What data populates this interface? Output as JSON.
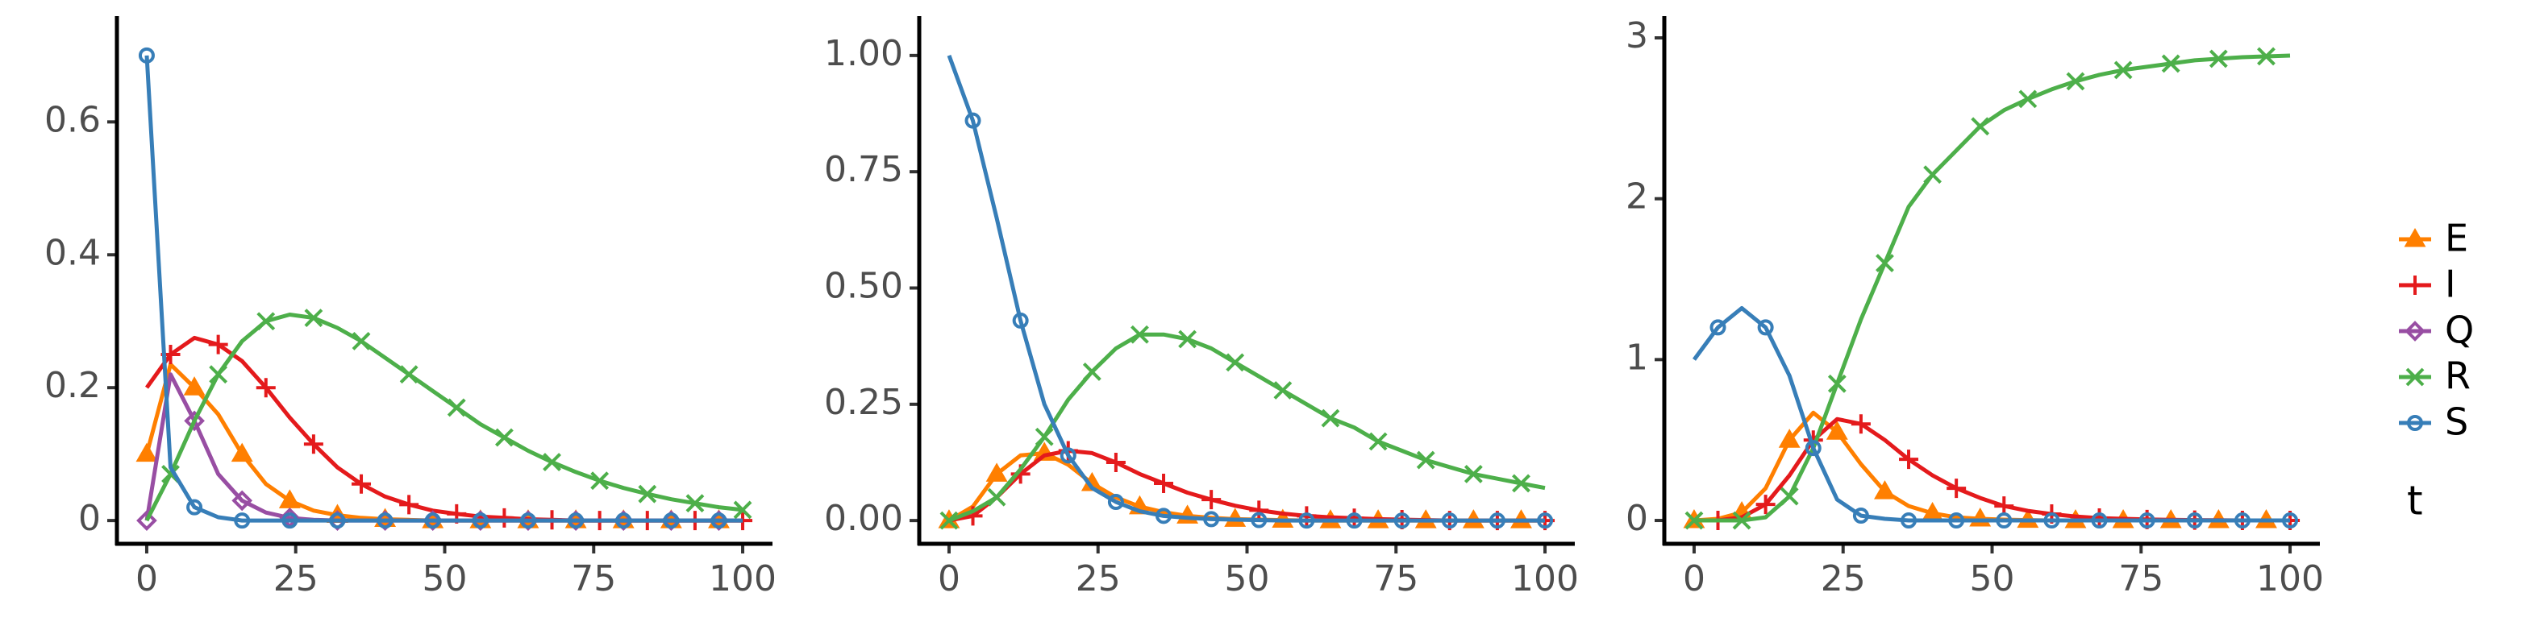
{
  "chart_data": [
    {
      "type": "line",
      "legend_title": "t",
      "x": [
        0,
        4,
        8,
        12,
        16,
        20,
        24,
        28,
        32,
        36,
        40,
        44,
        48,
        52,
        56,
        60,
        64,
        68,
        72,
        76,
        80,
        84,
        88,
        92,
        96,
        100
      ],
      "xlim": [
        -5,
        105
      ],
      "xticks": [
        0,
        25,
        50,
        75,
        100
      ],
      "ylim": [
        -0.035,
        0.735
      ],
      "yticks": [
        0.0,
        0.2,
        0.4,
        0.6
      ],
      "series": [
        {
          "name": "E",
          "color": "#ff7f00",
          "marker": "triangle",
          "values": [
            0.1,
            0.235,
            0.2,
            0.16,
            0.1,
            0.055,
            0.03,
            0.015,
            0.008,
            0.004,
            0.002,
            0.001,
            0,
            0,
            0,
            0,
            0,
            0,
            0,
            0,
            0,
            0,
            0,
            0,
            0,
            0
          ]
        },
        {
          "name": "I",
          "color": "#e41a1c",
          "marker": "plus",
          "values": [
            0.2,
            0.25,
            0.275,
            0.265,
            0.24,
            0.2,
            0.155,
            0.115,
            0.08,
            0.055,
            0.036,
            0.024,
            0.015,
            0.01,
            0.006,
            0.004,
            0.002,
            0.001,
            0,
            0,
            0,
            0,
            0,
            0,
            0,
            0
          ]
        },
        {
          "name": "Q",
          "color": "#984ea3",
          "marker": "diamond",
          "values": [
            0,
            0.22,
            0.15,
            0.07,
            0.03,
            0.012,
            0.004,
            0.001,
            0,
            0,
            0,
            0,
            0,
            0,
            0,
            0,
            0,
            0,
            0,
            0,
            0,
            0,
            0,
            0,
            0,
            0
          ]
        },
        {
          "name": "R",
          "color": "#4daf4a",
          "marker": "cross",
          "values": [
            0,
            0.07,
            0.15,
            0.22,
            0.27,
            0.3,
            0.31,
            0.305,
            0.29,
            0.27,
            0.245,
            0.22,
            0.195,
            0.17,
            0.145,
            0.125,
            0.105,
            0.088,
            0.073,
            0.06,
            0.049,
            0.04,
            0.032,
            0.026,
            0.02,
            0.016
          ]
        },
        {
          "name": "S",
          "color": "#377eb8",
          "marker": "circle",
          "values": [
            0.7,
            0.08,
            0.02,
            0.005,
            0,
            0,
            0,
            0,
            0,
            0,
            0,
            0,
            0,
            0,
            0,
            0,
            0,
            0,
            0,
            0,
            0,
            0,
            0,
            0,
            0,
            0
          ]
        }
      ]
    },
    {
      "type": "line",
      "x": [
        0,
        4,
        8,
        12,
        16,
        20,
        24,
        28,
        32,
        36,
        40,
        44,
        48,
        52,
        56,
        60,
        64,
        68,
        72,
        76,
        80,
        84,
        88,
        92,
        96,
        100
      ],
      "xlim": [
        -5,
        105
      ],
      "xticks": [
        0,
        25,
        50,
        75,
        100
      ],
      "ylim": [
        -0.05,
        1.05
      ],
      "yticks": [
        {
          "value": 0,
          "label": "0.00"
        },
        {
          "value": 0.25,
          "label": "0.25"
        },
        {
          "value": 0.5,
          "label": "0.50"
        },
        {
          "value": 0.75,
          "label": "0.75"
        },
        {
          "value": 1,
          "label": "1.00"
        }
      ],
      "series": [
        {
          "name": "E",
          "color": "#ff7f00",
          "marker": "triangle",
          "values": [
            0,
            0.03,
            0.1,
            0.14,
            0.145,
            0.12,
            0.08,
            0.05,
            0.03,
            0.018,
            0.01,
            0.006,
            0.003,
            0.002,
            0.001,
            0,
            0,
            0,
            0,
            0,
            0,
            0,
            0,
            0,
            0,
            0
          ]
        },
        {
          "name": "I",
          "color": "#e41a1c",
          "marker": "plus",
          "values": [
            0,
            0.01,
            0.05,
            0.1,
            0.14,
            0.15,
            0.145,
            0.125,
            0.1,
            0.08,
            0.06,
            0.045,
            0.032,
            0.022,
            0.015,
            0.01,
            0.007,
            0.005,
            0.003,
            0.002,
            0.001,
            0,
            0,
            0,
            0,
            0
          ]
        },
        {
          "name": "R",
          "color": "#4daf4a",
          "marker": "cross",
          "values": [
            0,
            0.02,
            0.05,
            0.11,
            0.18,
            0.26,
            0.32,
            0.37,
            0.4,
            0.4,
            0.39,
            0.37,
            0.34,
            0.31,
            0.28,
            0.25,
            0.22,
            0.2,
            0.17,
            0.15,
            0.13,
            0.115,
            0.1,
            0.09,
            0.08,
            0.07
          ]
        },
        {
          "name": "S",
          "color": "#377eb8",
          "marker": "circle",
          "values": [
            1,
            0.86,
            0.65,
            0.43,
            0.25,
            0.14,
            0.07,
            0.04,
            0.02,
            0.01,
            0.006,
            0.003,
            0.002,
            0.001,
            0,
            0,
            0,
            0,
            0,
            0,
            0,
            0,
            0,
            0,
            0,
            0
          ]
        }
      ]
    },
    {
      "type": "line",
      "x": [
        0,
        4,
        8,
        12,
        16,
        20,
        24,
        28,
        32,
        36,
        40,
        44,
        48,
        52,
        56,
        60,
        64,
        68,
        72,
        76,
        80,
        84,
        88,
        92,
        96,
        100
      ],
      "xlim": [
        -5,
        105
      ],
      "xticks": [
        0,
        25,
        50,
        75,
        100
      ],
      "ylim": [
        -0.145,
        3.035
      ],
      "yticks": [
        0,
        1,
        2,
        3
      ],
      "series": [
        {
          "name": "E",
          "color": "#ff7f00",
          "marker": "triangle",
          "values": [
            0,
            0.01,
            0.05,
            0.2,
            0.5,
            0.67,
            0.55,
            0.35,
            0.18,
            0.09,
            0.045,
            0.02,
            0.01,
            0.005,
            0.002,
            0,
            0,
            0,
            0,
            0,
            0,
            0,
            0,
            0,
            0,
            0
          ]
        },
        {
          "name": "I",
          "color": "#e41a1c",
          "marker": "plus",
          "values": [
            0,
            0,
            0.02,
            0.1,
            0.28,
            0.5,
            0.63,
            0.6,
            0.5,
            0.38,
            0.28,
            0.2,
            0.14,
            0.09,
            0.06,
            0.04,
            0.025,
            0.015,
            0.01,
            0.006,
            0.004,
            0.002,
            0.001,
            0,
            0,
            0
          ]
        },
        {
          "name": "R",
          "color": "#4daf4a",
          "marker": "cross",
          "values": [
            0,
            0,
            0,
            0.02,
            0.15,
            0.45,
            0.85,
            1.25,
            1.6,
            1.95,
            2.15,
            2.3,
            2.45,
            2.55,
            2.62,
            2.68,
            2.73,
            2.77,
            2.8,
            2.82,
            2.84,
            2.86,
            2.87,
            2.88,
            2.885,
            2.89
          ]
        },
        {
          "name": "S",
          "color": "#377eb8",
          "marker": "circle",
          "values": [
            1,
            1.2,
            1.32,
            1.2,
            0.9,
            0.45,
            0.13,
            0.03,
            0.01,
            0,
            0,
            0,
            0,
            0,
            0,
            0,
            0,
            0,
            0,
            0,
            0,
            0,
            0,
            0,
            0,
            0
          ]
        }
      ]
    }
  ]
}
